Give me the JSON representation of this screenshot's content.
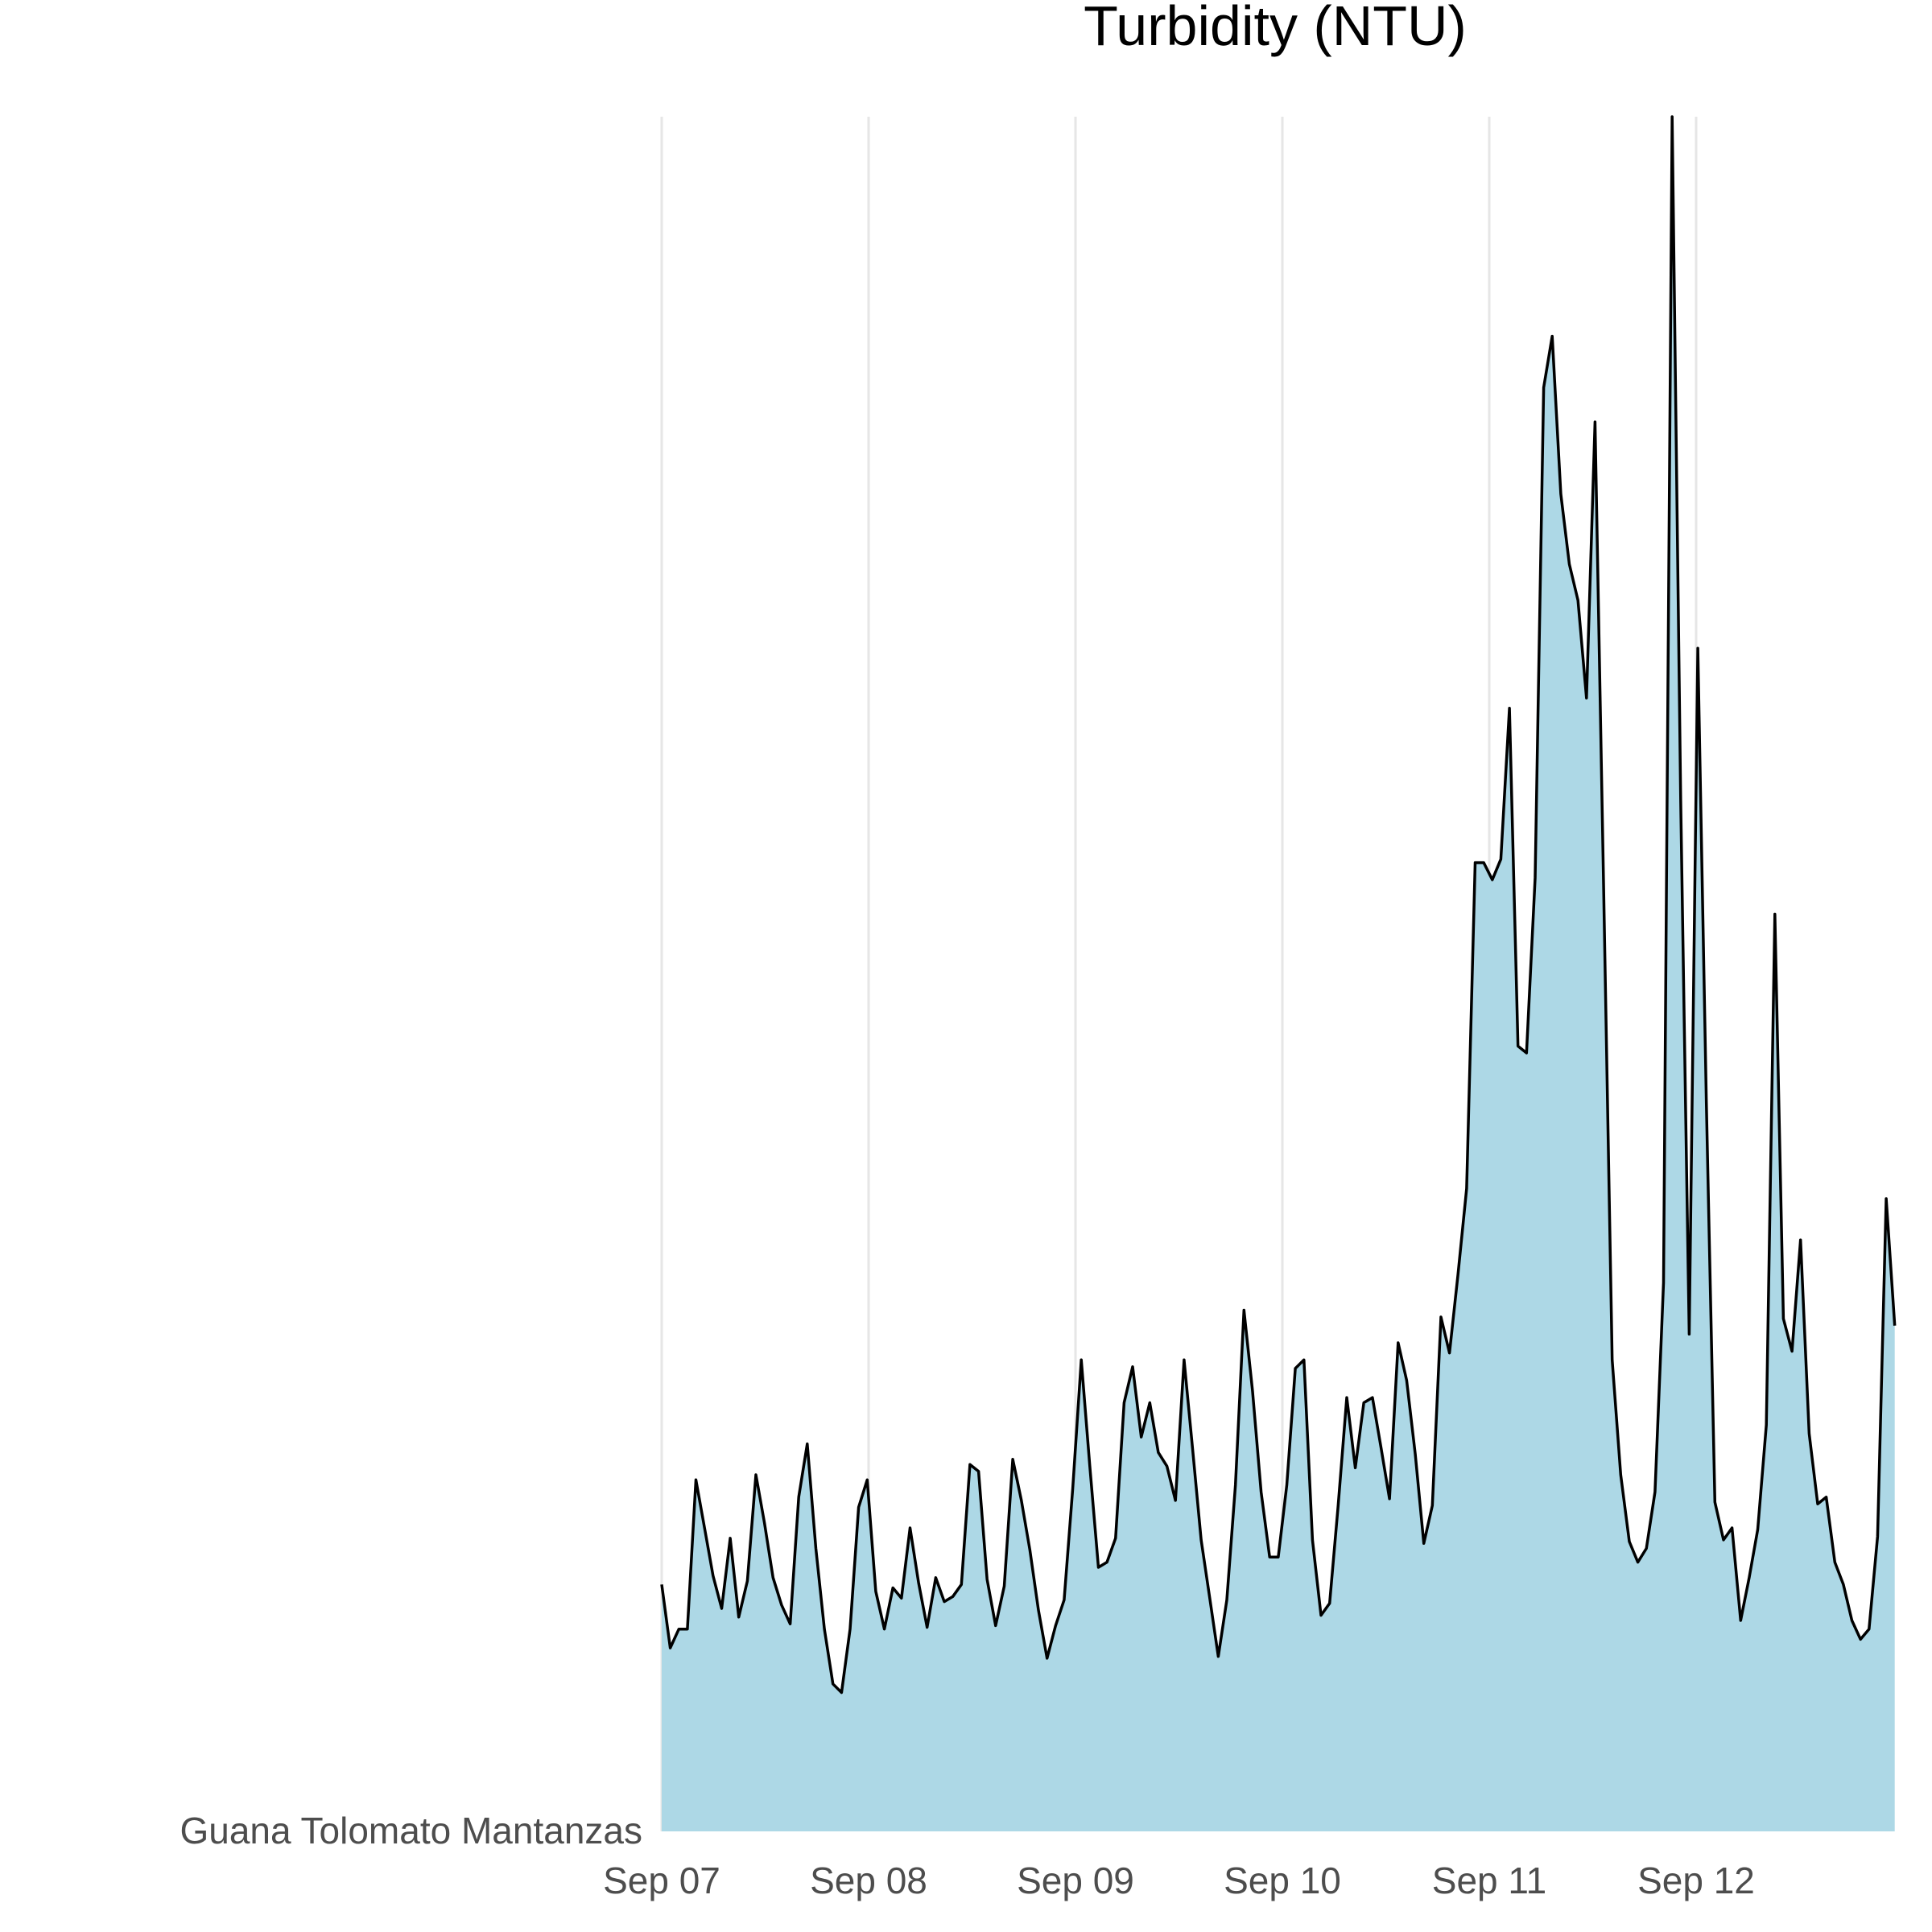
{
  "chart_data": {
    "type": "area",
    "title": "Turbidity (NTU)",
    "xlabel": "",
    "ylabel": "",
    "category_label": "Guana Tolomato Mantanzas",
    "x_ticks": [
      "Sep 07",
      "Sep 08",
      "Sep 09",
      "Sep 10",
      "Sep 11",
      "Sep 12"
    ],
    "x_start": 0,
    "x_end": 5.96,
    "interval_days": 0.04167,
    "ylim": [
      0,
      100
    ],
    "grid": "vertical-major",
    "fill_color": "#ADD8E6",
    "line_color": "#000000",
    "values": [
      14.4,
      10.7,
      11.8,
      11.8,
      20.5,
      17.7,
      14.9,
      13.0,
      17.1,
      12.5,
      14.6,
      20.8,
      18.0,
      14.8,
      13.2,
      12.1,
      19.5,
      22.6,
      16.5,
      11.8,
      8.6,
      8.1,
      11.8,
      18.9,
      20.5,
      14.0,
      11.8,
      14.2,
      13.6,
      17.7,
      14.5,
      11.9,
      14.8,
      13.4,
      13.7,
      14.4,
      21.4,
      21.0,
      14.7,
      12.0,
      14.3,
      21.7,
      19.3,
      16.4,
      12.9,
      10.1,
      12.0,
      13.5,
      20.0,
      27.5,
      21.3,
      15.4,
      15.7,
      17.1,
      25.0,
      27.1,
      23.0,
      25.0,
      22.1,
      21.3,
      19.3,
      27.5,
      22.3,
      17.0,
      13.6,
      10.2,
      13.5,
      20.2,
      30.4,
      25.7,
      19.8,
      16.0,
      16.0,
      20.2,
      27.0,
      27.5,
      17.0,
      12.6,
      13.3,
      19.0,
      25.3,
      21.2,
      25.0,
      25.3,
      22.4,
      19.4,
      28.5,
      26.3,
      22.0,
      16.8,
      19.0,
      30.0,
      27.9,
      32.5,
      37.5,
      56.5,
      56.5,
      55.5,
      56.7,
      65.5,
      45.8,
      45.4,
      55.6,
      84.2,
      87.2,
      78.0,
      73.9,
      71.8,
      66.1,
      82.2,
      55.0,
      27.5,
      20.8,
      16.9,
      15.7,
      16.5,
      19.8,
      32.0,
      100.0,
      60.2,
      29.0,
      69.0,
      42.5,
      19.2,
      17.0,
      17.7,
      12.3,
      14.8,
      17.6,
      23.7,
      53.5,
      29.9,
      28.0,
      34.5,
      23.2,
      19.1,
      19.5,
      15.7,
      14.4,
      12.3,
      11.2,
      11.8,
      17.2,
      36.9,
      29.5
    ]
  }
}
